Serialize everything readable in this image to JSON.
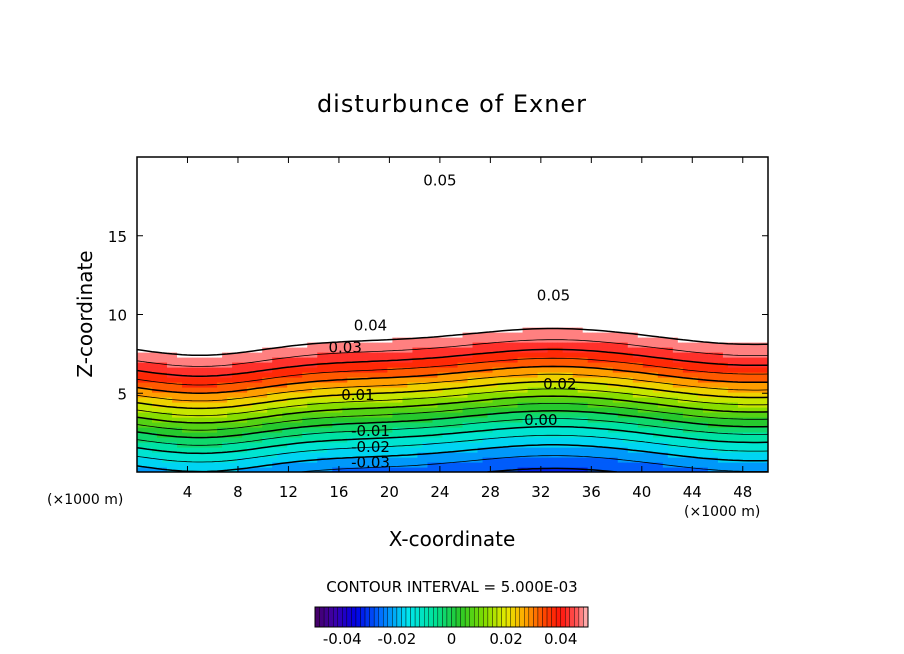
{
  "chart_data": {
    "type": "contour",
    "title": "disturbunce of Exner",
    "xlabel": "X-coordinate",
    "ylabel": "Z-coordinate",
    "x_unit": "(×1000 m)",
    "y_unit": "(×1000 m)",
    "xlim": [
      0,
      50
    ],
    "ylim": [
      0,
      20
    ],
    "x_ticks": [
      {
        "value": 4,
        "label": "4"
      },
      {
        "value": 8,
        "label": "8"
      },
      {
        "value": 12,
        "label": "12"
      },
      {
        "value": 16,
        "label": "16"
      },
      {
        "value": 20,
        "label": "20"
      },
      {
        "value": 24,
        "label": "24"
      },
      {
        "value": 28,
        "label": "28"
      },
      {
        "value": 32,
        "label": "32"
      },
      {
        "value": 36,
        "label": "36"
      },
      {
        "value": 40,
        "label": "40"
      },
      {
        "value": 44,
        "label": "44"
      },
      {
        "value": 48,
        "label": "48"
      }
    ],
    "y_ticks": [
      {
        "value": 5,
        "label": "5"
      },
      {
        "value": 10,
        "label": "10"
      },
      {
        "value": 15,
        "label": "15"
      }
    ],
    "contour_interval_text": "CONTOUR INTERVAL = 5.000E-03",
    "contour_interval": 0.005,
    "negative_contours_dashed": true,
    "value_range": [
      -0.05,
      0.05
    ],
    "above_range_region_blank": true,
    "contour_labels": [
      {
        "label": "0.05",
        "x": 24,
        "z": 18.5
      },
      {
        "label": "0.05",
        "x": 33,
        "z": 11.2
      },
      {
        "label": "0.04",
        "x": 18.5,
        "z": 9.3
      },
      {
        "label": "0.03",
        "x": 16.5,
        "z": 7.9
      },
      {
        "label": "0.02",
        "x": 33.5,
        "z": 5.6
      },
      {
        "label": "0.01",
        "x": 17.5,
        "z": 4.9
      },
      {
        "label": "0.00",
        "x": 32,
        "z": 3.3
      },
      {
        "label": "-0.01",
        "x": 18.5,
        "z": 2.6
      },
      {
        "label": "-0.02",
        "x": 18.5,
        "z": 1.6
      },
      {
        "label": "-0.03",
        "x": 18.5,
        "z": 0.6
      }
    ],
    "colorbar": {
      "min": -0.05,
      "max": 0.05,
      "ticks": [
        {
          "value": -0.04,
          "label": "-0.04"
        },
        {
          "value": -0.02,
          "label": "-0.02"
        },
        {
          "value": 0,
          "label": "0"
        },
        {
          "value": 0.02,
          "label": "0.02"
        },
        {
          "value": 0.04,
          "label": "0.04"
        }
      ]
    },
    "colors": {
      "colormap": "rainbow (purple-blue-cyan-green-yellow-orange-red-pink)",
      "above_range": "#ffffff",
      "contour_line": "#000000"
    }
  }
}
